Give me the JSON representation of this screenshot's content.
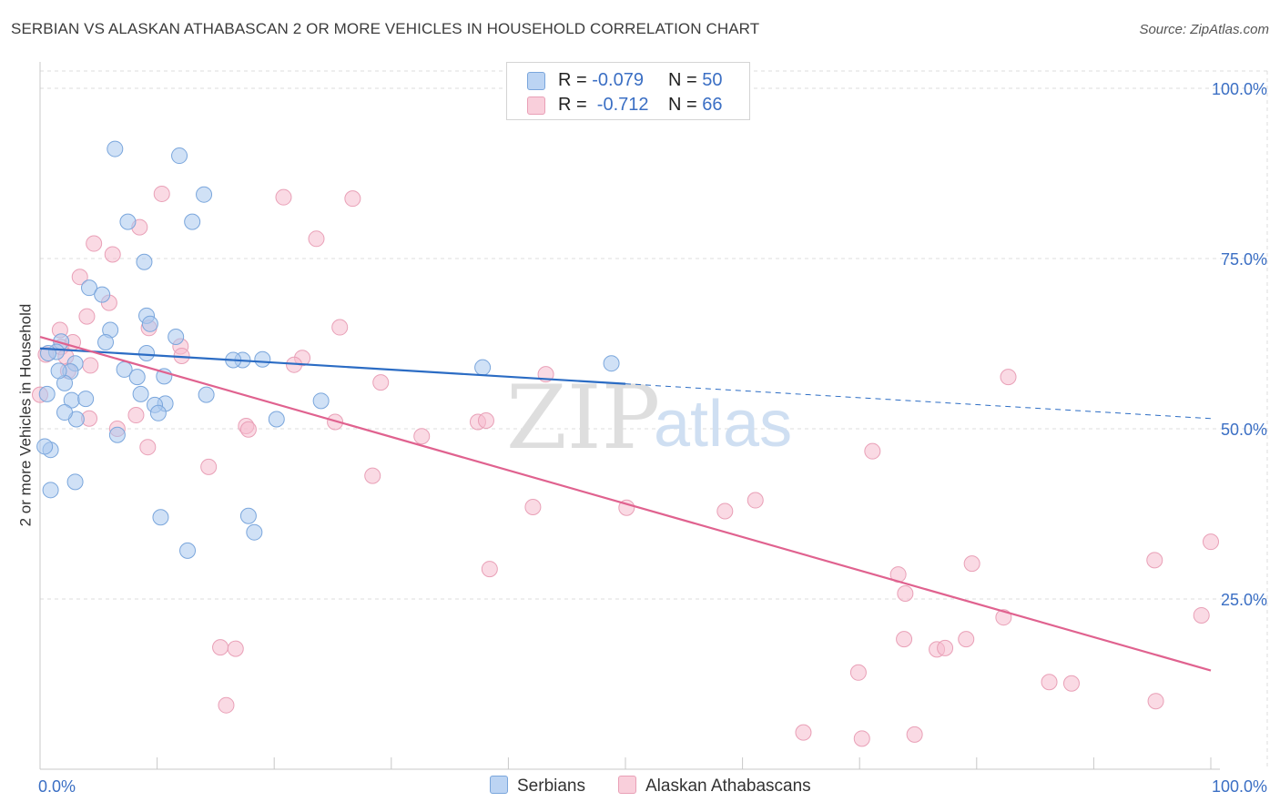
{
  "title": "SERBIAN VS ALASKAN ATHABASCAN 2 OR MORE VEHICLES IN HOUSEHOLD CORRELATION CHART",
  "source": "Source: ZipAtlas.com",
  "watermark": {
    "zip": "ZIP",
    "atlas": "atlas"
  },
  "colors": {
    "blue_fill": "#a9c8ee",
    "blue_stroke": "#7aa6dc",
    "blue_line": "#2b6cc4",
    "pink_fill": "#f6bccd",
    "pink_stroke": "#e9a0b7",
    "pink_line": "#e0628f",
    "axis_text": "#3b6fc4",
    "grid": "#dcdcdc"
  },
  "legend_top": {
    "rows": [
      {
        "series": "blue",
        "r_label": "R = ",
        "r_value": "-0.079",
        "n_label": "N = ",
        "n_value": "50"
      },
      {
        "series": "pink",
        "r_label": "R = ",
        "r_value": " -0.712",
        "n_label": "N = ",
        "n_value": "66"
      }
    ]
  },
  "legend_bottom": {
    "serbians": "Serbians",
    "alaskan": "Alaskan Athabascans"
  },
  "chart_data": {
    "type": "scatter",
    "xlabel": "",
    "ylabel": "2 or more Vehicles in Household",
    "xlim": [
      0,
      100
    ],
    "ylim": [
      0,
      100
    ],
    "x_tick_labels": [
      "0.0%",
      "100.0%"
    ],
    "y_tick_labels": [
      "100.0%",
      "75.0%",
      "50.0%",
      "25.0%"
    ],
    "y_tick_values": [
      100,
      75,
      50,
      25
    ],
    "grid": true,
    "series": [
      {
        "name": "Serbians",
        "color": "blue",
        "R": -0.079,
        "N": 50,
        "trend": {
          "x0": 0,
          "y0": 61.8,
          "x1": 50,
          "y1": 56.6,
          "dashed_to_x": 100,
          "dashed_to_y": 51.5
        },
        "points": [
          [
            6.4,
            91.1
          ],
          [
            11.9,
            90.1
          ],
          [
            8.9,
            74.5
          ],
          [
            14.0,
            84.4
          ],
          [
            7.5,
            80.4
          ],
          [
            13.0,
            80.4
          ],
          [
            4.2,
            70.7
          ],
          [
            5.3,
            69.7
          ],
          [
            9.1,
            66.6
          ],
          [
            6.0,
            64.5
          ],
          [
            9.4,
            65.4
          ],
          [
            11.6,
            63.5
          ],
          [
            1.8,
            62.8
          ],
          [
            5.6,
            62.7
          ],
          [
            9.1,
            61.1
          ],
          [
            17.3,
            60.1
          ],
          [
            1.4,
            61.3
          ],
          [
            0.7,
            61.1
          ],
          [
            3.0,
            59.6
          ],
          [
            2.6,
            58.4
          ],
          [
            16.5,
            60.1
          ],
          [
            7.2,
            58.7
          ],
          [
            10.6,
            57.7
          ],
          [
            19.0,
            60.2
          ],
          [
            2.1,
            56.7
          ],
          [
            1.6,
            58.5
          ],
          [
            0.6,
            55.1
          ],
          [
            2.7,
            54.2
          ],
          [
            3.9,
            54.4
          ],
          [
            8.6,
            55.1
          ],
          [
            10.7,
            53.7
          ],
          [
            3.1,
            51.4
          ],
          [
            2.1,
            52.4
          ],
          [
            6.6,
            49.1
          ],
          [
            0.9,
            46.9
          ],
          [
            0.4,
            47.4
          ],
          [
            20.2,
            51.4
          ],
          [
            0.9,
            41.0
          ],
          [
            3.0,
            42.2
          ],
          [
            10.3,
            37.0
          ],
          [
            17.8,
            37.2
          ],
          [
            12.6,
            32.1
          ],
          [
            24.0,
            54.1
          ],
          [
            37.8,
            59.0
          ],
          [
            18.3,
            34.8
          ],
          [
            8.3,
            57.6
          ],
          [
            9.8,
            53.5
          ],
          [
            48.8,
            59.6
          ],
          [
            10.1,
            52.3
          ],
          [
            14.2,
            55.0
          ]
        ]
      },
      {
        "name": "Alaskan Athabascans",
        "color": "pink",
        "R": -0.712,
        "N": 66,
        "trend": {
          "x0": 0,
          "y0": 63.5,
          "x1": 100,
          "y1": 14.5
        },
        "points": [
          [
            10.4,
            84.5
          ],
          [
            20.8,
            84.0
          ],
          [
            26.7,
            83.8
          ],
          [
            8.5,
            79.6
          ],
          [
            23.6,
            77.9
          ],
          [
            4.6,
            77.2
          ],
          [
            6.2,
            75.6
          ],
          [
            3.4,
            72.3
          ],
          [
            5.9,
            68.5
          ],
          [
            1.7,
            64.5
          ],
          [
            9.3,
            64.8
          ],
          [
            25.6,
            64.9
          ],
          [
            12.0,
            62.1
          ],
          [
            1.8,
            62.0
          ],
          [
            2.2,
            60.6
          ],
          [
            12.1,
            60.7
          ],
          [
            22.4,
            60.4
          ],
          [
            4.3,
            59.3
          ],
          [
            21.7,
            59.4
          ],
          [
            0.5,
            60.9
          ],
          [
            2.4,
            58.5
          ],
          [
            43.2,
            58.0
          ],
          [
            82.7,
            57.6
          ],
          [
            29.1,
            56.8
          ],
          [
            8.2,
            52.0
          ],
          [
            17.6,
            50.4
          ],
          [
            25.2,
            51.0
          ],
          [
            37.4,
            51.0
          ],
          [
            17.8,
            49.9
          ],
          [
            38.1,
            51.2
          ],
          [
            4.2,
            51.5
          ],
          [
            6.6,
            50.0
          ],
          [
            32.6,
            48.9
          ],
          [
            9.2,
            47.3
          ],
          [
            71.1,
            46.7
          ],
          [
            14.4,
            44.4
          ],
          [
            28.4,
            43.1
          ],
          [
            42.1,
            38.5
          ],
          [
            50.1,
            38.4
          ],
          [
            58.5,
            37.9
          ],
          [
            61.1,
            39.5
          ],
          [
            100.0,
            33.4
          ],
          [
            95.2,
            30.7
          ],
          [
            79.6,
            30.2
          ],
          [
            38.4,
            29.4
          ],
          [
            73.3,
            28.6
          ],
          [
            73.9,
            25.8
          ],
          [
            99.2,
            22.6
          ],
          [
            82.3,
            22.3
          ],
          [
            73.8,
            19.1
          ],
          [
            79.1,
            19.1
          ],
          [
            76.6,
            17.6
          ],
          [
            77.3,
            17.8
          ],
          [
            15.4,
            17.9
          ],
          [
            16.7,
            17.7
          ],
          [
            69.9,
            14.2
          ],
          [
            86.2,
            12.8
          ],
          [
            88.1,
            12.6
          ],
          [
            95.3,
            10.0
          ],
          [
            15.9,
            9.4
          ],
          [
            65.2,
            5.4
          ],
          [
            74.7,
            5.1
          ],
          [
            70.2,
            4.5
          ],
          [
            0.0,
            55.0
          ],
          [
            4.0,
            66.5
          ],
          [
            2.8,
            62.7
          ]
        ]
      }
    ]
  }
}
